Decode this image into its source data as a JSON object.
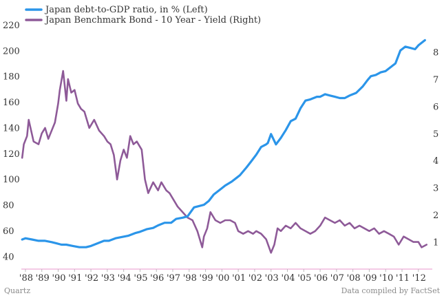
{
  "chart_data": {
    "type": "line",
    "title": "",
    "footer_left": "Quartz",
    "footer_right": "Data compiled by FactSet",
    "x_tick_labels": [
      "'88",
      "'89",
      "'90",
      "'91",
      "'92",
      "'93",
      "'94",
      "'95",
      "'96",
      "'97",
      "'98",
      "'99",
      "'00",
      "'01",
      "'02",
      "'03",
      "'04",
      "'05",
      "'06",
      "'07",
      "'08",
      "'09",
      "'10",
      "'11",
      "'12"
    ],
    "x_tick_years": [
      1988,
      1989,
      1990,
      1991,
      1992,
      1993,
      1994,
      1995,
      1996,
      1997,
      1998,
      1999,
      2000,
      2001,
      2002,
      2003,
      2004,
      2005,
      2006,
      2007,
      2008,
      2009,
      2010,
      2011,
      2012
    ],
    "xlim": [
      1987.75,
      2012.85
    ],
    "y_left": {
      "ylim": [
        30,
        220
      ],
      "ticks": [
        40,
        60,
        80,
        100,
        120,
        140,
        160,
        180,
        200,
        220
      ],
      "tick_labels": [
        "40",
        "60",
        "80",
        "100",
        "120",
        "140",
        "160",
        "180",
        "200",
        "220"
      ]
    },
    "y_right": {
      "ylim": [
        0,
        9
      ],
      "ticks": [
        1,
        2,
        3,
        4,
        5,
        6,
        7,
        8
      ],
      "tick_labels": [
        "1",
        "2",
        "3",
        "4",
        "5",
        "6",
        "7",
        "8"
      ]
    },
    "series": [
      {
        "name": "Japan debt-to-GDP ratio, in % (Left)",
        "axis": "left",
        "color": "#2b95e9",
        "x": [
          1987.8,
          1988.0,
          1988.4,
          1988.8,
          1989.2,
          1989.6,
          1989.9,
          1990.2,
          1990.5,
          1990.9,
          1991.3,
          1991.7,
          1992.0,
          1992.4,
          1992.8,
          1993.1,
          1993.5,
          1993.9,
          1994.3,
          1994.7,
          1995.0,
          1995.4,
          1995.8,
          1996.1,
          1996.5,
          1996.9,
          1997.2,
          1997.6,
          1997.9,
          1998.3,
          1998.6,
          1998.9,
          1999.2,
          1999.5,
          1999.9,
          2000.2,
          2000.6,
          2000.9,
          2001.1,
          2001.5,
          2001.8,
          2002.1,
          2002.4,
          2002.7,
          2002.8,
          2003.0,
          2003.3,
          2003.6,
          2003.9,
          2004.2,
          2004.5,
          2004.8,
          2005.1,
          2005.4,
          2005.8,
          2006.0,
          2006.3,
          2006.6,
          2006.9,
          2007.2,
          2007.5,
          2007.8,
          2008.2,
          2008.6,
          2008.9,
          2009.1,
          2009.4,
          2009.7,
          2010.0,
          2010.2,
          2010.6,
          2010.9,
          2011.2,
          2011.5,
          2011.8,
          2012.0,
          2012.4
        ],
        "values": [
          53,
          54,
          53,
          52,
          52,
          51,
          50,
          49,
          49,
          48,
          47,
          47,
          48,
          50,
          52,
          52,
          54,
          55,
          56,
          58,
          59,
          61,
          62,
          64,
          66,
          66,
          69,
          70,
          71,
          78,
          79,
          80,
          83,
          88,
          92,
          95,
          98,
          101,
          103,
          109,
          114,
          119,
          125,
          127,
          128,
          135,
          127,
          132,
          138,
          145,
          147,
          155,
          161,
          162,
          164,
          164,
          166,
          165,
          164,
          163,
          163,
          165,
          167,
          172,
          177,
          180,
          181,
          183,
          184,
          186,
          190,
          200,
          203,
          202,
          201,
          204,
          208
        ]
      },
      {
        "name": "Japan Benchmark Bond - 10 Year - Yield  (Right)",
        "axis": "right",
        "color": "#8e5a98",
        "x": [
          1987.8,
          1987.9,
          1988.1,
          1988.2,
          1988.5,
          1988.8,
          1989.0,
          1989.2,
          1989.4,
          1989.6,
          1989.8,
          1990.0,
          1990.1,
          1990.3,
          1990.5,
          1990.6,
          1990.8,
          1991.0,
          1991.2,
          1991.4,
          1991.6,
          1991.9,
          1992.2,
          1992.5,
          1992.8,
          1993.0,
          1993.2,
          1993.4,
          1993.6,
          1993.8,
          1994.0,
          1994.2,
          1994.4,
          1994.6,
          1994.8,
          1995.1,
          1995.3,
          1995.5,
          1995.8,
          1996.1,
          1996.3,
          1996.6,
          1996.8,
          1997.1,
          1997.3,
          1997.6,
          1997.9,
          1998.2,
          1998.5,
          1998.8,
          1998.9,
          1999.1,
          1999.3,
          1999.6,
          1999.9,
          2000.2,
          2000.5,
          2000.8,
          2001.0,
          2001.3,
          2001.6,
          2001.9,
          2002.1,
          2002.4,
          2002.7,
          2003.0,
          2003.2,
          2003.4,
          2003.6,
          2003.9,
          2004.2,
          2004.5,
          2004.8,
          2005.1,
          2005.4,
          2005.7,
          2006.0,
          2006.3,
          2006.6,
          2006.9,
          2007.2,
          2007.5,
          2007.8,
          2008.1,
          2008.4,
          2008.7,
          2009.0,
          2009.3,
          2009.6,
          2009.9,
          2010.2,
          2010.5,
          2010.8,
          2011.1,
          2011.4,
          2011.7,
          2012.0,
          2012.2,
          2012.5
        ],
        "values": [
          4.1,
          4.6,
          4.9,
          5.5,
          4.7,
          4.6,
          5.0,
          5.2,
          4.8,
          5.1,
          5.4,
          6.1,
          6.6,
          7.3,
          6.2,
          7.0,
          6.5,
          6.6,
          6.1,
          5.9,
          5.8,
          5.2,
          5.5,
          5.1,
          4.9,
          4.7,
          4.6,
          4.2,
          3.3,
          4.0,
          4.4,
          4.1,
          4.9,
          4.6,
          4.7,
          4.4,
          3.3,
          2.8,
          3.2,
          2.9,
          3.2,
          2.9,
          2.8,
          2.5,
          2.3,
          2.1,
          1.9,
          1.8,
          1.4,
          0.8,
          1.2,
          1.5,
          2.1,
          1.8,
          1.7,
          1.8,
          1.8,
          1.7,
          1.4,
          1.3,
          1.4,
          1.3,
          1.4,
          1.3,
          1.1,
          0.6,
          0.9,
          1.5,
          1.4,
          1.6,
          1.5,
          1.7,
          1.5,
          1.4,
          1.3,
          1.4,
          1.6,
          1.9,
          1.8,
          1.7,
          1.8,
          1.6,
          1.7,
          1.5,
          1.6,
          1.5,
          1.4,
          1.5,
          1.3,
          1.4,
          1.3,
          1.2,
          0.9,
          1.2,
          1.1,
          1.0,
          1.0,
          0.8,
          0.9
        ]
      }
    ]
  }
}
